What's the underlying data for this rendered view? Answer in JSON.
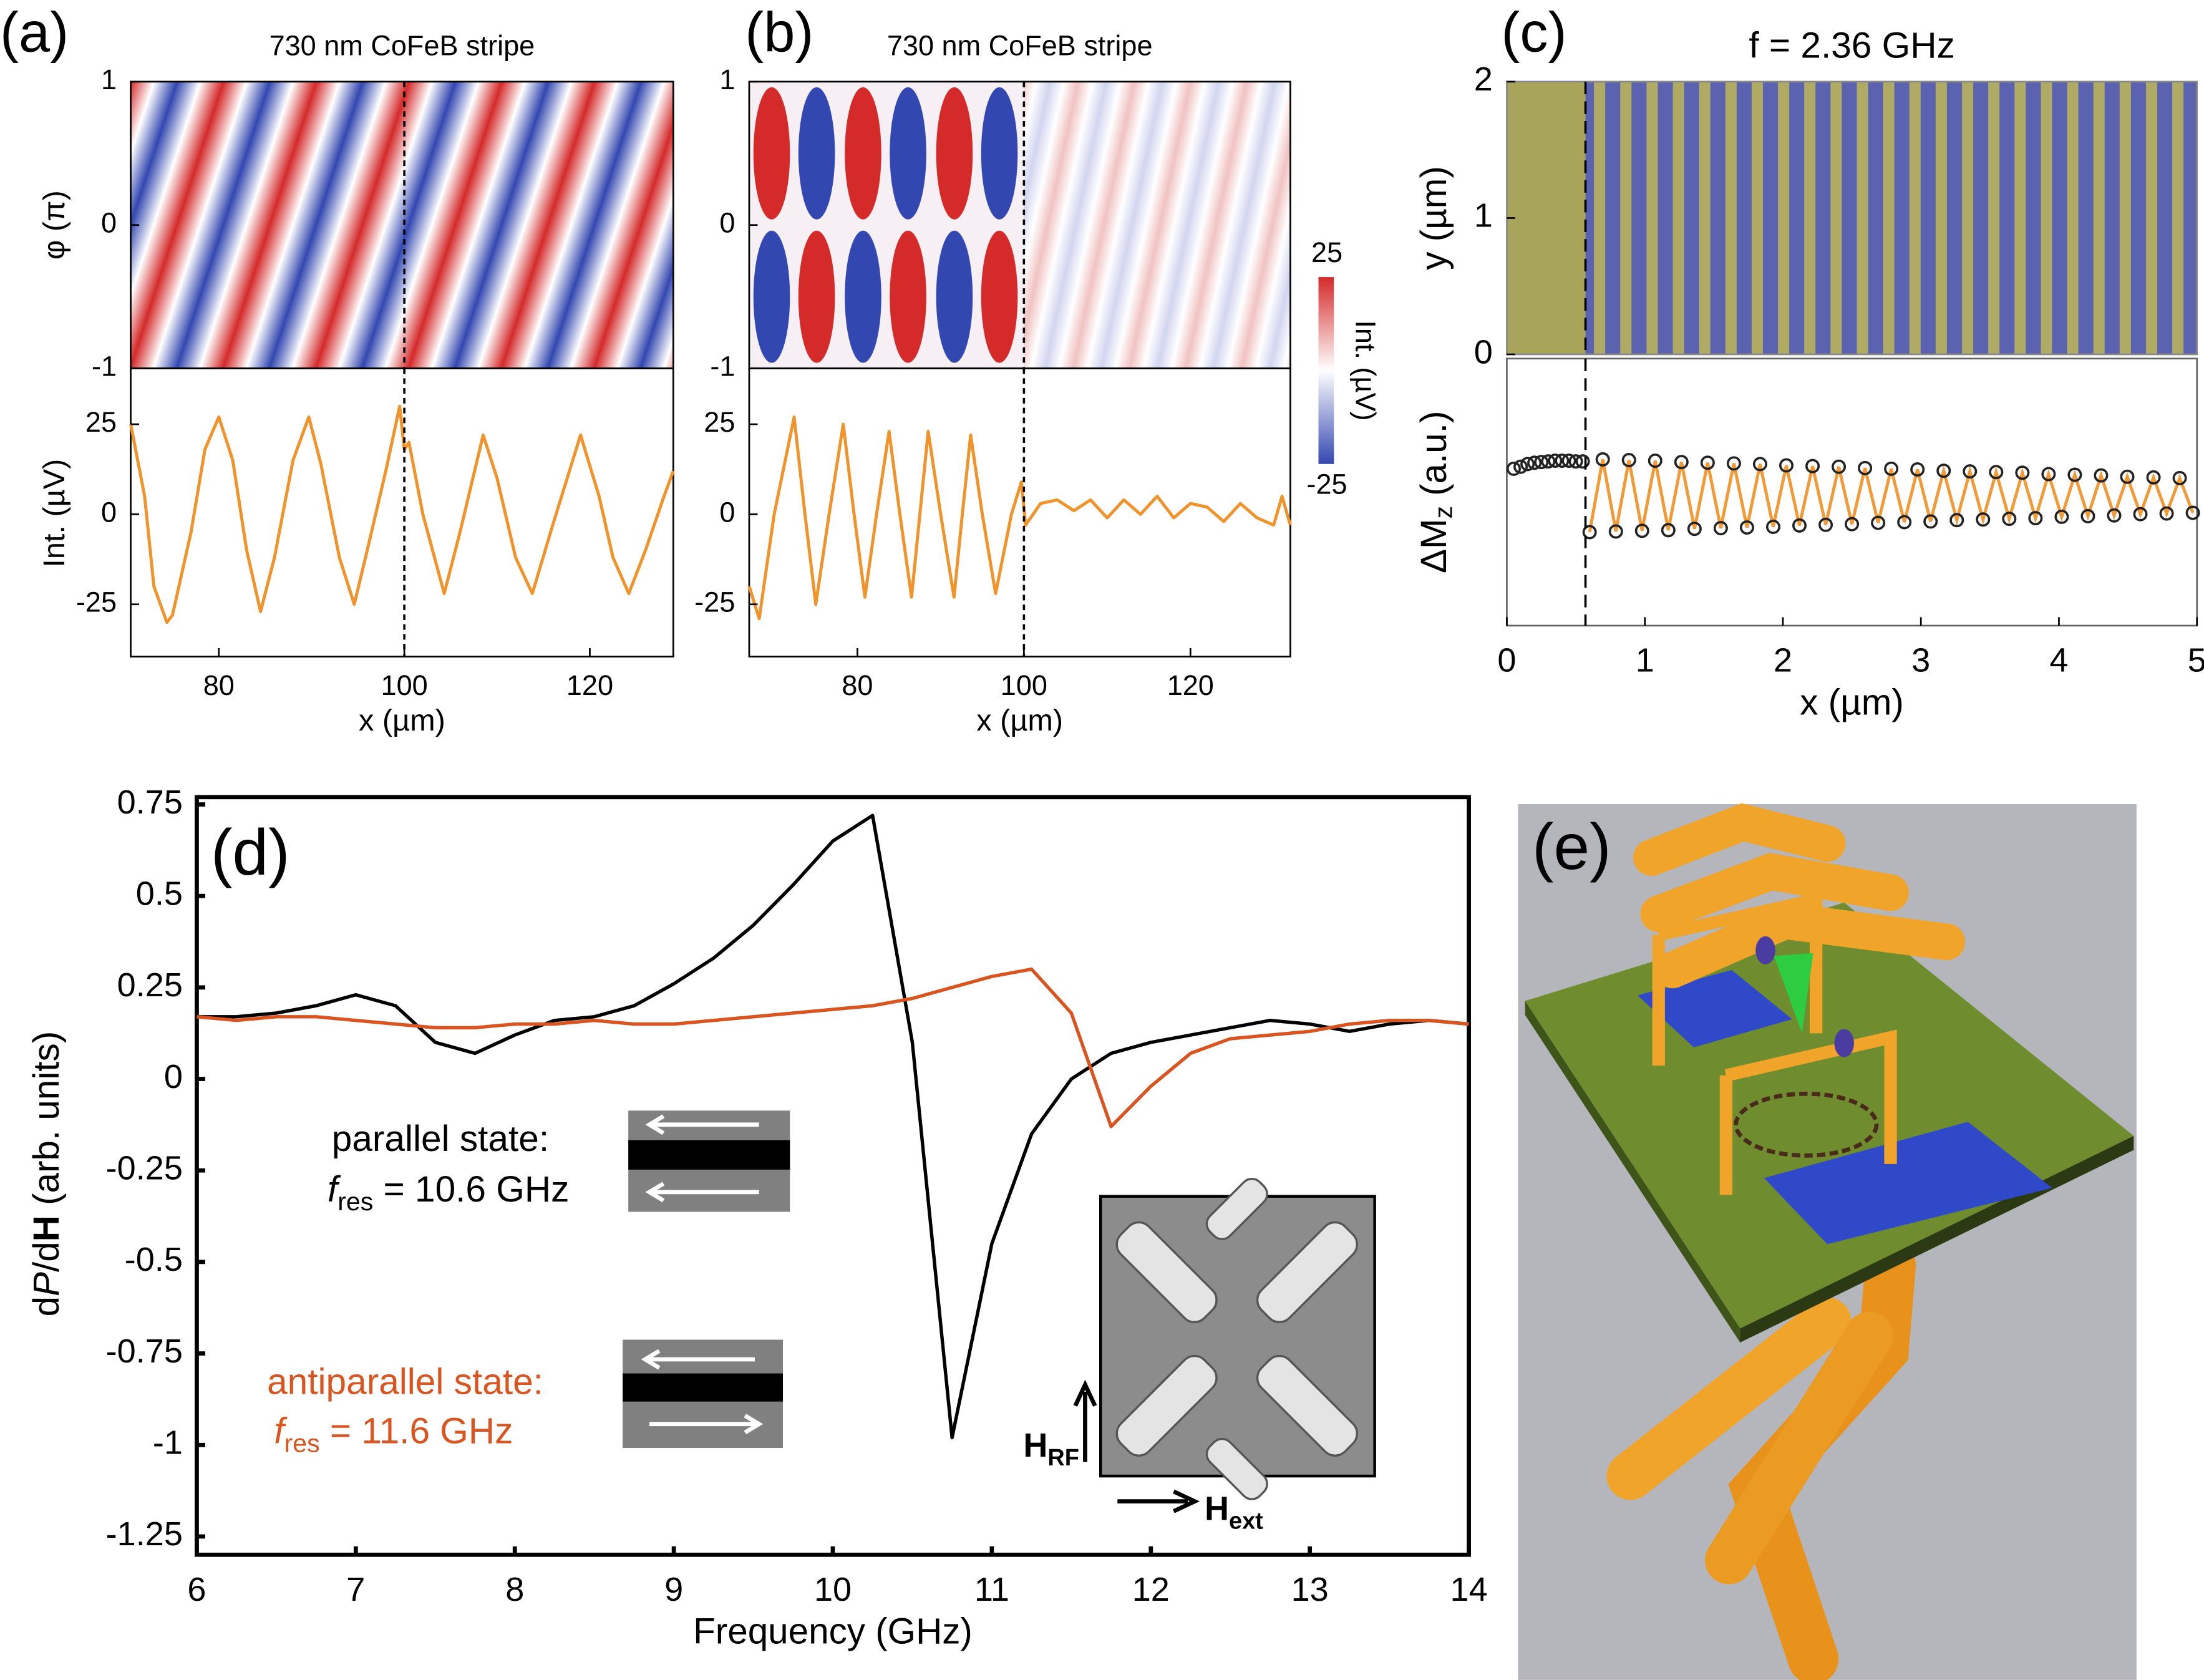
{
  "chart_data": [
    {
      "type": "heatmap",
      "label": "(a)",
      "title": "730 nm CoFeB stripe",
      "ylabel": "φ (π)",
      "xlim": [
        70.5,
        129
      ],
      "ylim": [
        -1,
        1
      ],
      "yticks": [
        -1,
        0,
        1
      ],
      "vline": 100
    },
    {
      "type": "line",
      "ylabel": "Int. (µV)",
      "xlabel": "x (µm)",
      "xlim": [
        70.5,
        129
      ],
      "xticks": [
        80,
        100,
        120
      ],
      "ylim": [
        -39.5,
        40.5
      ],
      "yticks": [
        -25,
        0,
        25
      ],
      "vline": 100,
      "color": "#f0932b",
      "x": [
        70.5,
        72,
        73,
        74.4,
        75,
        77,
        78.5,
        80,
        81.5,
        83,
        84.5,
        86,
        88,
        89.7,
        91,
        93,
        94.6,
        96,
        98,
        99.5,
        100,
        100.5,
        102,
        104.3,
        106,
        108.5,
        110,
        112,
        113.8,
        116,
        119,
        121,
        122.5,
        124.2,
        126,
        128,
        129
      ],
      "values": [
        25,
        5,
        -20,
        -30,
        -28,
        -5,
        18,
        27,
        15,
        -10,
        -27,
        -12,
        15,
        27,
        14,
        -12,
        -25,
        -10,
        12,
        30,
        18,
        20,
        0,
        -22,
        -5,
        22,
        10,
        -12,
        -22,
        -3,
        22,
        5,
        -12,
        -22,
        -10,
        5,
        12
      ]
    },
    {
      "type": "heatmap",
      "label": "(b)",
      "title": "730 nm CoFeB stripe",
      "xlim": [
        67,
        132
      ],
      "ylim": [
        -1,
        1
      ],
      "yticks": [
        -1,
        0,
        1
      ],
      "vline": 100,
      "colorbar": {
        "label": "Int. (µV)",
        "lim": [
          -25,
          25
        ],
        "ticks": [
          -25,
          25
        ]
      }
    },
    {
      "type": "line",
      "xlabel": "x (µm)",
      "xlim": [
        67,
        132
      ],
      "xticks": [
        80,
        100,
        120
      ],
      "ylim": [
        -39.5,
        40.5
      ],
      "yticks": [
        -25,
        0,
        25
      ],
      "vline": 100,
      "color": "#f0932b",
      "x": [
        67,
        68.2,
        70,
        72.4,
        73.7,
        75,
        76.6,
        78.3,
        79.6,
        80.9,
        82.3,
        83.8,
        85.1,
        86.5,
        87.5,
        88.5,
        90,
        91.6,
        92.6,
        93.6,
        95,
        96.6,
        98.5,
        99.7,
        100.2,
        102,
        104,
        106,
        108,
        110,
        112,
        114,
        116,
        118,
        120,
        122,
        124,
        126,
        128,
        130,
        131,
        132
      ],
      "values": [
        -20,
        -29,
        0,
        27,
        0,
        -25,
        0,
        25,
        0,
        -23,
        0,
        23,
        0,
        -23,
        0,
        23,
        0,
        -23,
        0,
        22,
        0,
        -22,
        0,
        9,
        -3,
        3,
        4,
        1,
        4,
        -1,
        4,
        0,
        5,
        -1,
        3,
        2,
        -2,
        3,
        -1,
        -3,
        5,
        -3
      ]
    },
    {
      "type": "heatmap",
      "label": "(c)",
      "title": "f = 2.36 GHz",
      "ylabel": "y (µm)",
      "xlim": [
        0,
        5
      ],
      "ylim": [
        0,
        2
      ],
      "yticks": [
        0,
        1,
        2
      ],
      "vline": 0.57
    },
    {
      "type": "scatter",
      "ylabel": [
        "ΔM",
        "z",
        " (a.u.)"
      ],
      "xlabel": "x (µm)",
      "xlim": [
        0,
        5
      ],
      "xticks": [
        0,
        1,
        2,
        3,
        4,
        5
      ],
      "ylim": [
        -2,
        2
      ],
      "vline": 0.57,
      "series": [
        {
          "mark": "points",
          "color": "#222222",
          "x": [
            0.05,
            0.1,
            0.15,
            0.2,
            0.25,
            0.3,
            0.35,
            0.4,
            0.45,
            0.5,
            0.55,
            0.6,
            0.695,
            0.79,
            0.885,
            0.98,
            1.075,
            1.17,
            1.265,
            1.36,
            1.455,
            1.55,
            1.645,
            1.74,
            1.835,
            1.93,
            2.025,
            2.12,
            2.215,
            2.31,
            2.405,
            2.5,
            2.595,
            2.69,
            2.785,
            2.88,
            2.975,
            3.07,
            3.165,
            3.26,
            3.355,
            3.45,
            3.545,
            3.64,
            3.735,
            3.83,
            3.925,
            4.02,
            4.115,
            4.21,
            4.305,
            4.4,
            4.495,
            4.59,
            4.685,
            4.78,
            4.875,
            4.97
          ],
          "values": [
            0.35,
            0.38,
            0.42,
            0.44,
            0.45,
            0.46,
            0.47,
            0.47,
            0.47,
            0.46,
            0.46,
            -0.6,
            0.49,
            -0.59,
            0.48,
            -0.58,
            0.47,
            -0.57,
            0.45,
            -0.55,
            0.44,
            -0.54,
            0.43,
            -0.53,
            0.42,
            -0.52,
            0.4,
            -0.5,
            0.39,
            -0.49,
            0.38,
            -0.48,
            0.36,
            -0.46,
            0.35,
            -0.45,
            0.34,
            -0.44,
            0.32,
            -0.42,
            0.31,
            -0.41,
            0.3,
            -0.4,
            0.29,
            -0.39,
            0.27,
            -0.37,
            0.26,
            -0.36,
            0.25,
            -0.35,
            0.23,
            -0.33,
            0.22,
            -0.32,
            0.21,
            -0.31
          ]
        },
        {
          "mark": "line",
          "color": "#f29a38",
          "x": [
            0.6,
            0.695,
            0.79,
            0.885,
            0.98,
            1.075,
            1.17,
            1.265,
            1.36,
            1.455,
            1.55,
            1.645,
            1.74,
            1.835,
            1.93,
            2.025,
            2.12,
            2.215,
            2.31,
            2.405,
            2.5,
            2.595,
            2.69,
            2.785,
            2.88,
            2.975,
            3.07,
            3.165,
            3.26,
            3.355,
            3.45,
            3.545,
            3.64,
            3.735,
            3.83,
            3.925,
            4.02,
            4.115,
            4.21,
            4.305,
            4.4,
            4.495,
            4.59,
            4.685,
            4.78,
            4.875,
            4.97
          ],
          "values": [
            -0.6,
            0.49,
            -0.59,
            0.48,
            -0.58,
            0.47,
            -0.57,
            0.45,
            -0.55,
            0.44,
            -0.54,
            0.43,
            -0.53,
            0.42,
            -0.52,
            0.4,
            -0.5,
            0.39,
            -0.49,
            0.38,
            -0.48,
            0.36,
            -0.46,
            0.35,
            -0.45,
            0.34,
            -0.44,
            0.32,
            -0.42,
            0.31,
            -0.41,
            0.3,
            -0.4,
            0.29,
            -0.39,
            0.27,
            -0.37,
            0.26,
            -0.36,
            0.25,
            -0.35,
            0.23,
            -0.33,
            0.22,
            -0.32,
            0.21,
            -0.31
          ]
        }
      ]
    },
    {
      "type": "line",
      "label": "(d)",
      "ylabel": [
        "d",
        "P",
        "/d",
        "H",
        " (arb. units)"
      ],
      "xlabel": "Frequency (GHz)",
      "xlim": [
        6,
        14
      ],
      "xticks": [
        6,
        7,
        8,
        9,
        10,
        11,
        12,
        13,
        14
      ],
      "ylim": [
        -1.3,
        0.77
      ],
      "yticks": [
        -1.25,
        -1,
        -0.75,
        -0.5,
        -0.25,
        0,
        0.25,
        0.5,
        0.75
      ],
      "x": [
        6,
        6.25,
        6.5,
        6.75,
        7,
        7.25,
        7.5,
        7.75,
        8,
        8.25,
        8.5,
        8.75,
        9,
        9.25,
        9.5,
        9.75,
        10,
        10.25,
        10.5,
        10.75,
        11,
        11.25,
        11.5,
        11.75,
        12,
        12.25,
        12.5,
        12.75,
        13,
        13.25,
        13.5,
        13.75,
        14
      ],
      "series": [
        {
          "color": "#000000",
          "values": [
            0.17,
            0.17,
            0.18,
            0.2,
            0.23,
            0.2,
            0.1,
            0.07,
            0.12,
            0.16,
            0.17,
            0.2,
            0.26,
            0.33,
            0.42,
            0.53,
            0.65,
            0.72,
            0.1,
            -0.98,
            -0.45,
            -0.15,
            0.0,
            0.07,
            0.1,
            0.12,
            0.14,
            0.16,
            0.15,
            0.13,
            0.15,
            0.16,
            0.15
          ]
        },
        {
          "color": "#d9541e",
          "values": [
            0.17,
            0.16,
            0.17,
            0.17,
            0.16,
            0.15,
            0.14,
            0.14,
            0.15,
            0.15,
            0.16,
            0.15,
            0.15,
            0.16,
            0.17,
            0.18,
            0.19,
            0.2,
            0.22,
            0.25,
            0.28,
            0.3,
            0.18,
            -0.13,
            -0.02,
            0.07,
            0.11,
            0.12,
            0.13,
            0.15,
            0.16,
            0.16,
            0.15
          ]
        }
      ],
      "annotations": [
        {
          "parts": [
            "parallel state:"
          ],
          "color": "#000000"
        },
        {
          "parts": [
            "f",
            "res",
            " = 10.6 GHz"
          ],
          "color": "#000000"
        },
        {
          "parts": [
            "antiparallel state:"
          ],
          "color": "#d9541e"
        },
        {
          "parts": [
            "f",
            "res",
            " = 11.6 GHz"
          ],
          "color": "#d9541e"
        },
        {
          "parts": [
            "H",
            "RF"
          ],
          "color": "#000000"
        },
        {
          "parts": [
            "H",
            "ext"
          ],
          "color": "#000000"
        }
      ]
    },
    {
      "type": "illustration",
      "label": "(e)"
    }
  ]
}
